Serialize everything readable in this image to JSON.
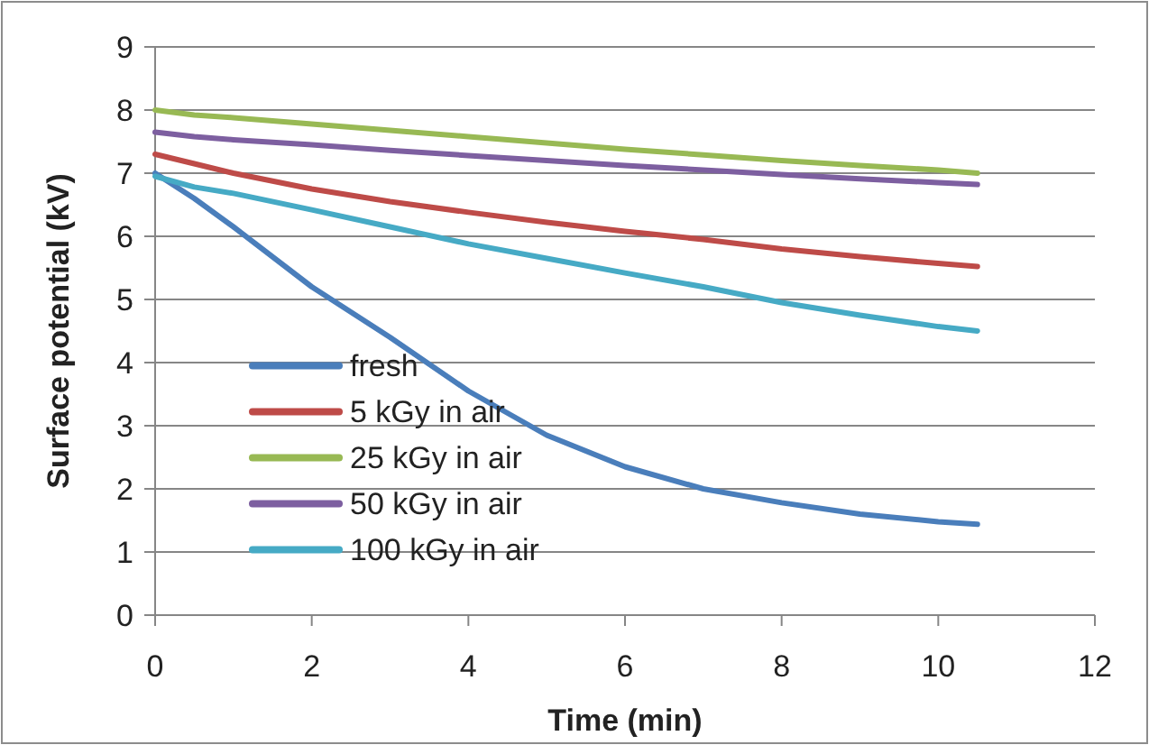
{
  "chart_data": {
    "type": "line",
    "xlabel": "Time (min)",
    "ylabel": "Surface potential (kV)",
    "xlim": [
      0,
      12
    ],
    "xticks": [
      0,
      2,
      4,
      6,
      8,
      10,
      12
    ],
    "ylim": [
      0,
      9
    ],
    "yticks": [
      0,
      1,
      2,
      3,
      4,
      5,
      6,
      7,
      8,
      9
    ],
    "grid": "y",
    "legend": "bottom left",
    "marker": "none",
    "line_style": "solid",
    "x": [
      0,
      0.5,
      1,
      2,
      3,
      4,
      5,
      6,
      7,
      8,
      9,
      10,
      10.5
    ],
    "series": [
      {
        "name": "fresh",
        "color": "#4a7ebb",
        "values": [
          7.0,
          6.6,
          6.15,
          5.2,
          4.4,
          3.55,
          2.85,
          2.35,
          2.0,
          1.78,
          1.6,
          1.48,
          1.44
        ]
      },
      {
        "name": "5 kGy in air",
        "color": "#be4b48",
        "values": [
          7.3,
          7.15,
          7.0,
          6.75,
          6.55,
          6.38,
          6.22,
          6.08,
          5.95,
          5.8,
          5.68,
          5.57,
          5.52
        ]
      },
      {
        "name": "25 kGy in air",
        "color": "#98b954",
        "values": [
          8.0,
          7.92,
          7.88,
          7.78,
          7.68,
          7.58,
          7.48,
          7.38,
          7.29,
          7.2,
          7.12,
          7.05,
          7.0
        ]
      },
      {
        "name": "50 kGy in air",
        "color": "#7d5fa0",
        "values": [
          7.65,
          7.58,
          7.53,
          7.45,
          7.36,
          7.28,
          7.2,
          7.12,
          7.05,
          6.98,
          6.91,
          6.85,
          6.82
        ]
      },
      {
        "name": "100 kGy in air",
        "color": "#46aac5",
        "values": [
          6.95,
          6.78,
          6.68,
          6.42,
          6.15,
          5.88,
          5.65,
          5.42,
          5.2,
          4.95,
          4.75,
          4.57,
          4.5
        ]
      }
    ]
  }
}
